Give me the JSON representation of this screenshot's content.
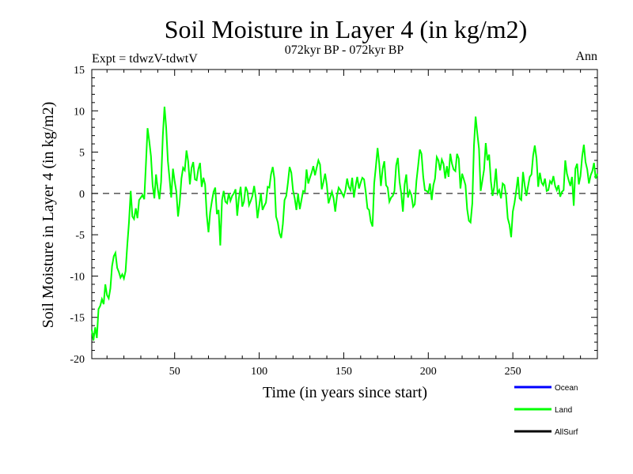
{
  "chart_data": {
    "type": "line",
    "title": "Soil Moisture in Layer 4 (in kg/m2)",
    "subtitle": "072kyr BP - 072kyr BP",
    "expt_label": "Expt = tdwzV-tdwtV",
    "period_label": "Ann",
    "xlabel": "Time (in years since start)",
    "ylabel": "Soil Moisture in Layer 4 (in kg/m2)",
    "xlim": [
      1,
      300
    ],
    "ylim": [
      -20,
      15
    ],
    "x_ticks": [
      50,
      100,
      150,
      200,
      250
    ],
    "y_ticks": [
      -20,
      -15,
      -10,
      -5,
      0,
      5,
      10,
      15
    ],
    "reference_line": 0,
    "legend_position": "bottom-right",
    "legend": [
      {
        "name": "Ocean",
        "color": "#0000ff"
      },
      {
        "name": "Land",
        "color": "#00ff00"
      },
      {
        "name": "AllSurf",
        "color": "#000000"
      }
    ],
    "series": [
      {
        "name": "Land",
        "color": "#00ff00",
        "x": [
          1,
          2,
          3,
          4,
          5,
          6,
          7,
          8,
          9,
          10,
          11,
          12,
          13,
          14,
          15,
          16,
          17,
          18,
          19,
          20,
          21,
          22,
          23,
          24,
          25,
          26,
          27,
          28,
          29,
          30,
          31,
          32,
          33,
          34,
          35,
          36,
          37,
          38,
          39,
          40,
          41,
          42,
          43,
          44,
          45,
          46,
          47,
          48,
          49,
          50,
          51,
          52,
          53,
          54,
          55,
          56,
          57,
          58,
          59,
          60,
          61,
          62,
          63,
          64,
          65,
          66,
          67,
          68,
          69,
          70,
          71,
          72,
          73,
          74,
          75,
          76,
          77,
          78,
          79,
          80,
          81,
          82,
          83,
          84,
          85,
          86,
          87,
          88,
          89,
          90,
          91,
          92,
          93,
          94,
          95,
          96,
          97,
          98,
          99,
          100,
          101,
          102,
          103,
          104,
          105,
          106,
          107,
          108,
          109,
          110,
          111,
          112,
          113,
          114,
          115,
          116,
          117,
          118,
          119,
          120,
          121,
          122,
          123,
          124,
          125,
          126,
          127,
          128,
          129,
          130,
          131,
          132,
          133,
          134,
          135,
          136,
          137,
          138,
          139,
          140,
          141,
          142,
          143,
          144,
          145,
          146,
          147,
          148,
          149,
          150,
          151,
          152,
          153,
          154,
          155,
          156,
          157,
          158,
          159,
          160,
          161,
          162,
          163,
          164,
          165,
          166,
          167,
          168,
          169,
          170,
          171,
          172,
          173,
          174,
          175,
          176,
          177,
          178,
          179,
          180,
          181,
          182,
          183,
          184,
          185,
          186,
          187,
          188,
          189,
          190,
          191,
          192,
          193,
          194,
          195,
          196,
          197,
          198,
          199,
          200,
          201,
          202,
          203,
          204,
          205,
          206,
          207,
          208,
          209,
          210,
          211,
          212,
          213,
          214,
          215,
          216,
          217,
          218,
          219,
          220,
          221,
          222,
          223,
          224,
          225,
          226,
          227,
          228,
          229,
          230,
          231,
          232,
          233,
          234,
          235,
          236,
          237,
          238,
          239,
          240,
          241,
          242,
          243,
          244,
          245,
          246,
          247,
          248,
          249,
          250,
          251,
          252,
          253,
          254,
          255,
          256,
          257,
          258,
          259,
          260,
          261,
          262,
          263,
          264,
          265,
          266,
          267,
          268,
          269,
          270,
          271,
          272,
          273,
          274,
          275,
          276,
          277,
          278,
          279,
          280,
          281,
          282,
          283,
          284,
          285,
          286,
          287,
          288,
          289,
          290,
          291,
          292,
          293,
          294,
          295,
          296,
          297,
          298,
          299,
          300
        ],
        "values": [
          -16.5,
          -17.8,
          -16.2,
          -17.5,
          -14.0,
          -13.6,
          -12.8,
          -13.4,
          -11.0,
          -12.3,
          -12.7,
          -11.5,
          -8.8,
          -7.6,
          -7.2,
          -9.0,
          -9.5,
          -10.2,
          -9.8,
          -10.3,
          -9.4,
          -6.2,
          -3.5,
          0.3,
          -2.8,
          -3.1,
          -1.8,
          -3.0,
          -0.8,
          -0.5,
          -0.2,
          -0.7,
          3.5,
          7.9,
          6.3,
          4.5,
          1.0,
          -0.6,
          2.3,
          0.6,
          -0.7,
          1.4,
          7.0,
          10.5,
          8.0,
          3.9,
          1.8,
          -0.5,
          3.0,
          1.5,
          0.2,
          -2.8,
          -1.1,
          1.8,
          3.1,
          2.8,
          5.2,
          3.9,
          1.1,
          3.1,
          3.8,
          1.7,
          1.6,
          2.9,
          3.7,
          0.8,
          1.9,
          1.1,
          -2.6,
          -4.7,
          -2.3,
          -1.0,
          0.2,
          0.7,
          -2.5,
          -2.0,
          -6.3,
          -0.8,
          0.3,
          -1.0,
          -1.2,
          0.0,
          -0.9,
          -0.3,
          0.0,
          0.5,
          -2.7,
          -0.6,
          0.8,
          -1.6,
          -1.0,
          0.8,
          0.3,
          -1.4,
          -0.9,
          -0.3,
          0.9,
          -0.5,
          -3.0,
          -1.5,
          0.0,
          -2.0,
          -1.5,
          -1.1,
          0.8,
          0.7,
          2.3,
          3.2,
          1.8,
          -2.8,
          -3.5,
          -4.8,
          -5.4,
          -3.7,
          -0.8,
          -0.3,
          1.3,
          3.2,
          2.5,
          0.4,
          -0.6,
          -2.0,
          0.0,
          -1.9,
          -0.8,
          0.3,
          0.2,
          2.9,
          1.2,
          1.9,
          2.5,
          3.3,
          2.2,
          3.1,
          4.0,
          3.5,
          0.5,
          1.4,
          2.4,
          1.0,
          -1.2,
          -0.5,
          0.2,
          -0.6,
          -2.2,
          -0.3,
          0.7,
          0.4,
          0.0,
          -0.4,
          0.4,
          1.8,
          0.8,
          0.4,
          1.9,
          -0.5,
          0.9,
          2.0,
          0.6,
          1.3,
          1.9,
          1.7,
          0.2,
          -1.8,
          -2.0,
          -3.4,
          -4.0,
          1.2,
          3.2,
          5.5,
          3.6,
          0.9,
          3.0,
          3.9,
          1.0,
          0.7,
          -1.0,
          -0.5,
          -0.3,
          0.3,
          3.4,
          4.3,
          1.4,
          0.0,
          -2.2,
          1.1,
          2.3,
          -0.5,
          0.3,
          -0.2,
          -1.6,
          -1.3,
          1.5,
          3.4,
          5.3,
          4.8,
          2.0,
          0.4,
          0.3,
          0.1,
          1.2,
          -0.8,
          1.0,
          1.8,
          4.4,
          4.0,
          2.8,
          4.1,
          3.6,
          1.8,
          3.3,
          2.0,
          4.8,
          3.6,
          2.9,
          2.7,
          4.8,
          4.2,
          0.6,
          2.4,
          1.7,
          1.0,
          -1.9,
          -3.3,
          -3.5,
          -1.2,
          5.8,
          9.3,
          7.2,
          5.4,
          0.3,
          1.6,
          2.9,
          6.1,
          4.0,
          4.7,
          1.5,
          -0.3,
          0.8,
          3.0,
          0.0,
          0.4,
          -0.6,
          1.2,
          1.0,
          -0.3,
          -3.0,
          -3.8,
          -5.3,
          -2.2,
          -1.1,
          0.3,
          2.0,
          -0.6,
          -0.8,
          2.6,
          1.0,
          -0.3,
          0.9,
          2.0,
          2.3,
          4.6,
          5.8,
          4.2,
          0.8,
          2.5,
          1.3,
          1.0,
          1.8,
          0.3,
          0.4,
          1.5,
          1.2,
          2.1,
          0.9,
          0.4,
          1.0,
          -0.4,
          0.2,
          0.4,
          4.0,
          2.4,
          1.6,
          0.9,
          2.0,
          -1.5,
          3.0,
          3.6,
          1.1,
          2.1,
          4.5,
          5.9,
          3.8,
          2.9,
          1.2,
          2.2,
          2.7,
          3.7,
          1.8,
          2.4
        ]
      }
    ]
  }
}
